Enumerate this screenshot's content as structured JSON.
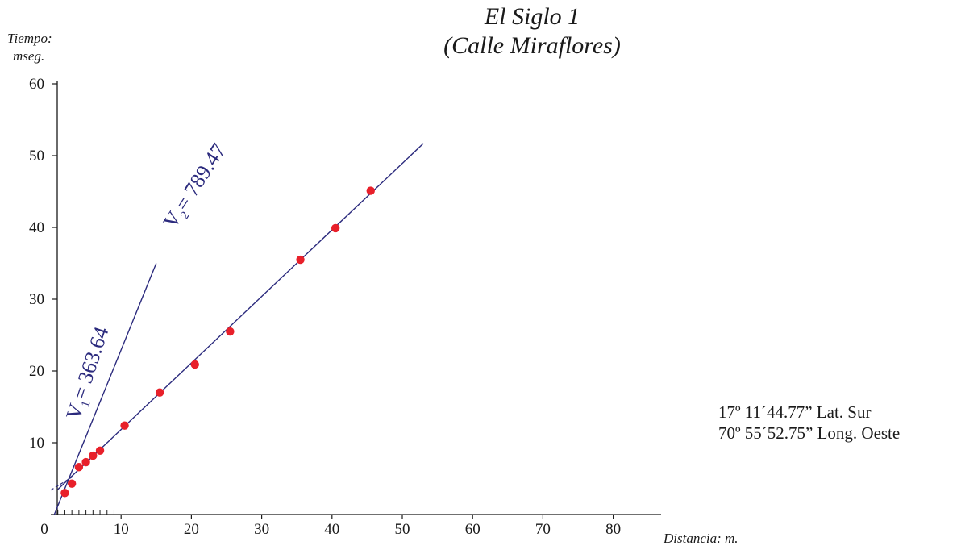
{
  "chart_data": {
    "type": "scatter",
    "title": "El Siglo 1",
    "subtitle": "(Calle Miraflores)",
    "ylabel_line1": "Tiempo:",
    "ylabel_line2": "mseg.",
    "xlabel": "Distancia:  m.",
    "xlim": [
      0,
      88
    ],
    "ylim": [
      0,
      60
    ],
    "x_ticks": [
      0,
      10,
      20,
      30,
      40,
      50,
      60,
      70,
      80
    ],
    "y_ticks": [
      10,
      20,
      30,
      40,
      50,
      60
    ],
    "series": [
      {
        "points": [
          [
            2,
            3
          ],
          [
            3,
            4.3
          ],
          [
            4,
            6.6
          ],
          [
            5,
            7.3
          ],
          [
            6,
            8.2
          ],
          [
            7,
            8.9
          ],
          [
            10.5,
            12.4
          ],
          [
            15.5,
            17
          ],
          [
            20.5,
            20.9
          ],
          [
            25.5,
            25.5
          ],
          [
            35.5,
            35.5
          ],
          [
            40.5,
            39.9
          ],
          [
            45.5,
            45.1
          ]
        ],
        "color": "#e8202a"
      }
    ],
    "fit_lines": [
      {
        "label_main": "V",
        "label_sub": "1",
        "label_value": "= 363.64",
        "from": [
          0.5,
          0
        ],
        "to": [
          15,
          35
        ],
        "color": "#2b2a7d"
      },
      {
        "label_main": "V",
        "label_sub": "2",
        "label_value": "= 789.47",
        "from": [
          1,
          3.5
        ],
        "to": [
          53,
          51.7
        ],
        "color": "#2b2a7d"
      }
    ],
    "crossover_dash": {
      "from": [
        0,
        3.4
      ],
      "to": [
        3,
        5.2
      ]
    },
    "legend": "none",
    "grid": false
  },
  "coordinates": {
    "latitude": "17º 11´44.77” Lat. Sur",
    "longitude": "70º 55´52.75” Long. Oeste"
  },
  "colors": {
    "line": "#2b2a7d",
    "marker": "#e8202a",
    "axis": "#1a1a1a"
  }
}
